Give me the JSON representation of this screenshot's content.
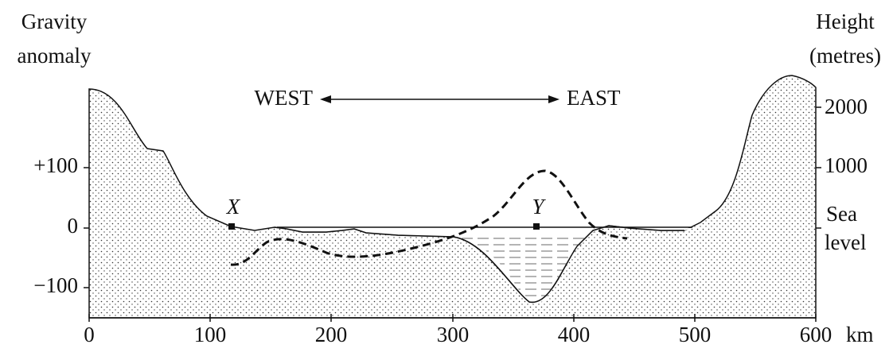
{
  "left_axis": {
    "title": [
      "Gravity",
      "anomaly"
    ],
    "ticks": [
      "+100",
      "0",
      "−100"
    ]
  },
  "right_axis": {
    "title": [
      "Height",
      "(metres)"
    ],
    "ticks": [
      "2000",
      "1000"
    ],
    "sea_level": [
      "Sea",
      "level"
    ]
  },
  "x_axis": {
    "ticks": [
      "0",
      "100",
      "200",
      "300",
      "400",
      "500",
      "600"
    ],
    "unit": "km"
  },
  "directions": {
    "west": "WEST",
    "east": "EAST"
  },
  "points": {
    "x": "X",
    "y": "Y"
  }
}
